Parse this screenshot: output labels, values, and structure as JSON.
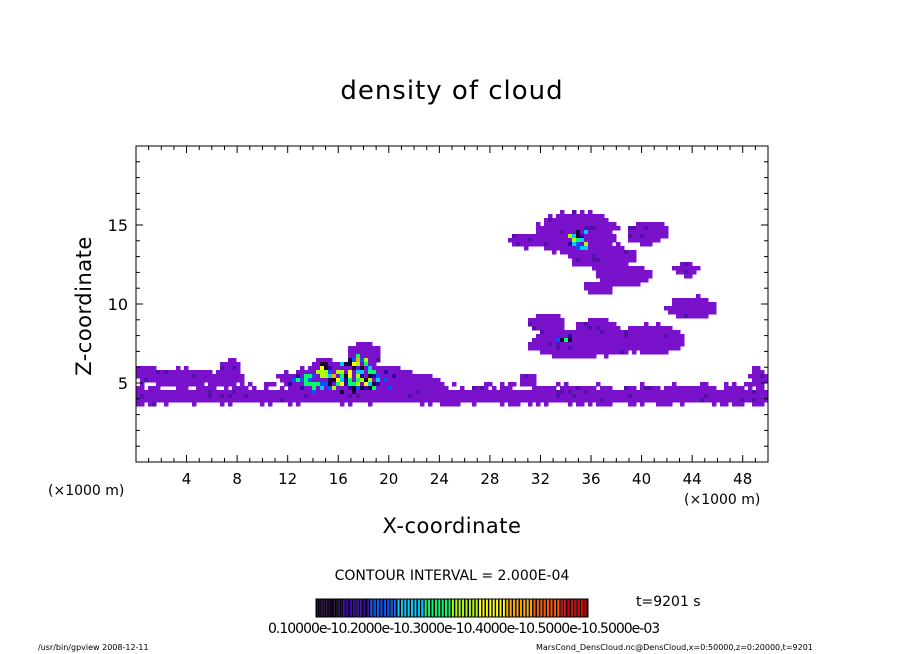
{
  "page": {
    "contour_interval": "CONTOUR INTERVAL = 2.000E-04",
    "time_label": "t=9201 s",
    "colorbar_labels": "0.10000e-10.2000e-10.3000e-10.4000e-10.5000e-10.5000e-03",
    "footer_left": "/usr/bin/gpview  2008-12-11",
    "footer_right": "MarsCond_DensCloud.nc@DensCloud,x=0:50000,z=0:20000,t=9201"
  },
  "chart_data": {
    "type": "heatmap",
    "title": "density of cloud",
    "xlabel": "X-coordinate",
    "ylabel": "Z-coordinate",
    "x_unit_left": "(×1000 m)",
    "x_unit_right": "(×1000 m)",
    "xlim": [
      0,
      50
    ],
    "ylim": [
      0,
      20
    ],
    "x_ticks": [
      4,
      8,
      12,
      16,
      20,
      24,
      28,
      32,
      36,
      40,
      44,
      48
    ],
    "y_ticks": [
      5,
      10,
      15
    ],
    "fill_color": "#7a12cc",
    "colormap": [
      "#1a0033",
      "#3300aa",
      "#0055ff",
      "#00ccff",
      "#00ff66",
      "#aaff00",
      "#ffff00",
      "#ffaa00",
      "#ff5500",
      "#dd0000"
    ],
    "regions": [
      {
        "shape": "band",
        "x": [
          0,
          50
        ],
        "z": [
          3.7,
          4.8
        ]
      },
      {
        "shape": "blob",
        "cx": 3.5,
        "cz": 5.4,
        "rx": 3.2,
        "rz": 0.6
      },
      {
        "shape": "blob",
        "cx": 1.0,
        "cz": 5.6,
        "rx": 1.2,
        "rz": 0.5
      },
      {
        "shape": "blob",
        "cx": 7.5,
        "cz": 6.0,
        "rx": 1.0,
        "rz": 0.5
      },
      {
        "shape": "blob",
        "cx": 7.0,
        "cz": 5.3,
        "rx": 1.8,
        "rz": 0.5
      },
      {
        "shape": "blob",
        "cx": 22.5,
        "cz": 5.0,
        "rx": 2.0,
        "rz": 0.6
      },
      {
        "shape": "blob",
        "cx": 49.2,
        "cz": 5.4,
        "rx": 0.8,
        "rz": 0.7
      },
      {
        "shape": "blob",
        "cx": 31.0,
        "cz": 5.3,
        "rx": 0.6,
        "rz": 0.4
      },
      {
        "shape": "blob",
        "cx": 34.8,
        "cz": 14.5,
        "rx": 3.5,
        "rz": 1.5
      },
      {
        "shape": "blob",
        "cx": 31.0,
        "cz": 14.0,
        "rx": 1.8,
        "rz": 0.5
      },
      {
        "shape": "blob",
        "cx": 37.0,
        "cz": 13.0,
        "rx": 3.0,
        "rz": 0.9
      },
      {
        "shape": "blob",
        "cx": 38.5,
        "cz": 11.8,
        "rx": 2.5,
        "rz": 0.7
      },
      {
        "shape": "blob",
        "cx": 40.5,
        "cz": 14.5,
        "rx": 1.8,
        "rz": 0.8
      },
      {
        "shape": "blob",
        "cx": 36.5,
        "cz": 11.0,
        "rx": 1.2,
        "rz": 0.5
      },
      {
        "shape": "blob",
        "cx": 43.5,
        "cz": 12.2,
        "rx": 1.0,
        "rz": 0.5
      },
      {
        "shape": "blob",
        "cx": 35.5,
        "cz": 7.5,
        "rx": 5.0,
        "rz": 1.0
      },
      {
        "shape": "blob",
        "cx": 32.5,
        "cz": 8.8,
        "rx": 1.5,
        "rz": 0.6
      },
      {
        "shape": "blob",
        "cx": 41.0,
        "cz": 7.8,
        "rx": 2.8,
        "rz": 1.0
      },
      {
        "shape": "blob",
        "cx": 44.0,
        "cz": 9.8,
        "rx": 2.2,
        "rz": 0.8
      },
      {
        "shape": "blob",
        "cx": 36.5,
        "cz": 8.5,
        "rx": 2.0,
        "rz": 0.6
      },
      {
        "shape": "blob",
        "cx": 17.0,
        "cz": 5.2,
        "rx": 6.0,
        "rz": 1.2
      },
      {
        "shape": "blob",
        "cx": 18.0,
        "cz": 6.8,
        "rx": 1.5,
        "rz": 0.8
      },
      {
        "shape": "blob",
        "cx": 15.0,
        "cz": 6.0,
        "rx": 1.2,
        "rz": 0.7
      }
    ],
    "hotspots": [
      {
        "cx": 16.5,
        "cz": 5.2,
        "rx": 5.0,
        "rz": 1.0
      },
      {
        "cx": 17.5,
        "cz": 6.3,
        "rx": 1.5,
        "rz": 0.6
      },
      {
        "cx": 15.0,
        "cz": 5.8,
        "rx": 1.0,
        "rz": 0.6
      },
      {
        "cx": 35.0,
        "cz": 14.0,
        "rx": 1.2,
        "rz": 0.8
      },
      {
        "cx": 34.0,
        "cz": 7.8,
        "rx": 0.8,
        "rz": 0.3
      }
    ],
    "grid": false
  }
}
